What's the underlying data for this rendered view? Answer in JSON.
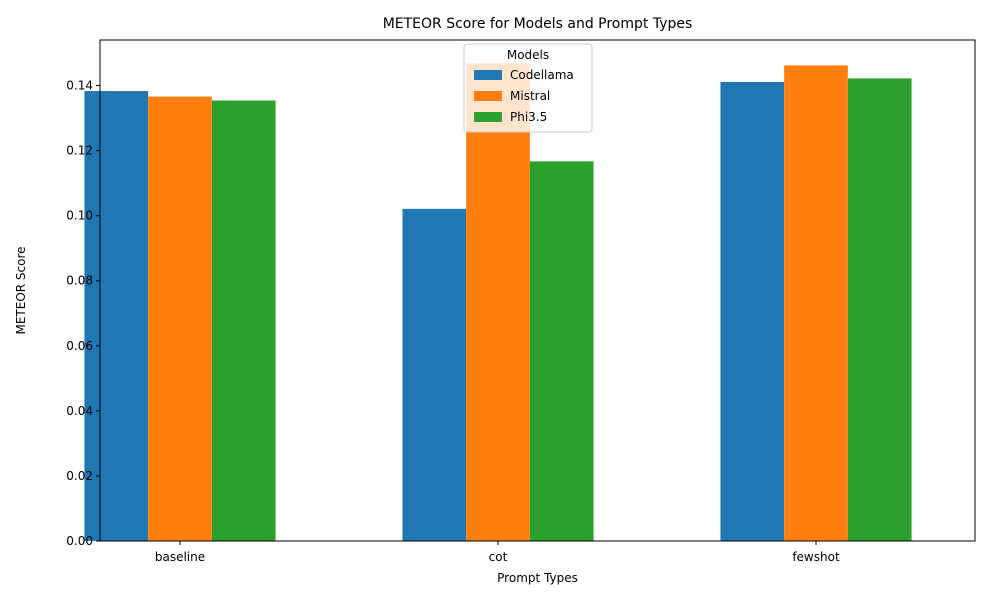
{
  "chart_data": {
    "type": "bar",
    "title": "METEOR Score for Models and Prompt Types",
    "xlabel": "Prompt Types",
    "ylabel": "METEOR Score",
    "categories": [
      "baseline",
      "cot",
      "fewshot"
    ],
    "series": [
      {
        "name": "Codellama",
        "color": "#1f77b4",
        "values": [
          0.1383,
          0.1021,
          0.1411
        ]
      },
      {
        "name": "Mistral",
        "color": "#ff7f0e",
        "values": [
          0.1366,
          0.1468,
          0.1462
        ]
      },
      {
        "name": "Phi3.5",
        "color": "#2ca02c",
        "values": [
          0.1354,
          0.1167,
          0.1422
        ]
      }
    ],
    "ylim": [
      0,
      0.154
    ],
    "yticks": [
      0.0,
      0.02,
      0.04,
      0.06,
      0.08,
      0.1,
      0.12,
      0.14
    ],
    "ytick_labels": [
      "0.00",
      "0.02",
      "0.04",
      "0.06",
      "0.08",
      "0.10",
      "0.12",
      "0.14"
    ],
    "grid": false,
    "legend": {
      "title": "Models",
      "position": "upper center"
    }
  }
}
